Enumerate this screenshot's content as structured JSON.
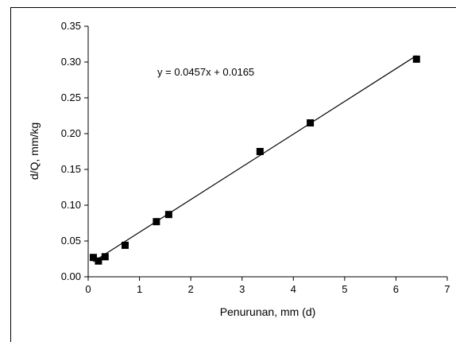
{
  "chart_data": {
    "type": "scatter",
    "title": "",
    "xlabel": "Penurunan, mm (d)",
    "ylabel": "d/Q, mm/kg",
    "xlim": [
      0,
      7
    ],
    "ylim": [
      0,
      0.35
    ],
    "x_ticks": [
      "0",
      "1",
      "2",
      "3",
      "4",
      "5",
      "6",
      "7"
    ],
    "y_ticks": [
      "0.00",
      "0.05",
      "0.10",
      "0.15",
      "0.20",
      "0.25",
      "0.30",
      "0.35"
    ],
    "grid": false,
    "legend": "none",
    "series": [
      {
        "marker": "square",
        "color": "#000000",
        "points": [
          {
            "x": 0.1,
            "y": 0.027
          },
          {
            "x": 0.2,
            "y": 0.022
          },
          {
            "x": 0.33,
            "y": 0.028
          },
          {
            "x": 0.72,
            "y": 0.044
          },
          {
            "x": 1.33,
            "y": 0.077
          },
          {
            "x": 1.57,
            "y": 0.087
          },
          {
            "x": 3.35,
            "y": 0.175
          },
          {
            "x": 4.33,
            "y": 0.215
          },
          {
            "x": 6.4,
            "y": 0.304
          }
        ]
      }
    ],
    "trendline": {
      "slope": 0.0457,
      "intercept": 0.0165,
      "x_range": [
        0.1,
        6.4
      ],
      "equation": "y = 0.0457x + 0.0165"
    }
  }
}
